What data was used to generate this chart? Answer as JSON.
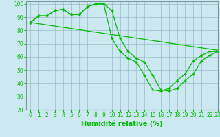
{
  "xlabel": "Humidité relative (%)",
  "bg_color": "#cce8f0",
  "line_color": "#00bb00",
  "grid_color": "#99bbcc",
  "xlim": [
    -0.5,
    23
  ],
  "ylim": [
    20,
    102
  ],
  "yticks": [
    20,
    30,
    40,
    50,
    60,
    70,
    80,
    90,
    100
  ],
  "xticks": [
    0,
    1,
    2,
    3,
    4,
    5,
    6,
    7,
    8,
    9,
    10,
    11,
    12,
    13,
    14,
    15,
    16,
    17,
    18,
    19,
    20,
    21,
    22,
    23
  ],
  "curve1_x": [
    0,
    1,
    2,
    3,
    4,
    5,
    6,
    7,
    8,
    9,
    10,
    11,
    12,
    13,
    14,
    15,
    16,
    17,
    18,
    19,
    20,
    21,
    22,
    23
  ],
  "curve1_y": [
    86,
    91,
    91,
    95,
    96,
    92,
    92,
    98,
    100,
    100,
    95,
    74,
    64,
    59,
    56,
    46,
    35,
    34,
    36,
    42,
    47,
    57,
    61,
    64
  ],
  "curve2_x": [
    0,
    1,
    2,
    3,
    4,
    5,
    6,
    7,
    8,
    9,
    10,
    11,
    12,
    13,
    14,
    15,
    16,
    17,
    18,
    19,
    20,
    21,
    22,
    23
  ],
  "curve2_y": [
    86,
    91,
    91,
    95,
    96,
    92,
    92,
    98,
    100,
    100,
    74,
    64,
    59,
    56,
    46,
    35,
    34,
    36,
    42,
    47,
    57,
    61,
    64,
    64
  ],
  "curve3_x": [
    0,
    23
  ],
  "curve3_y": [
    86,
    65
  ],
  "xlabel_fontsize": 7,
  "tick_fontsize": 5.5
}
